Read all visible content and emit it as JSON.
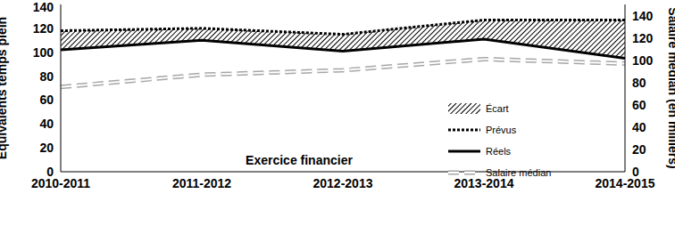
{
  "chart_data": {
    "type": "line",
    "x_label": "Exercice financier",
    "y_label": "Équivalents temps plein",
    "y2_label": "Salaire médian (en milliers)",
    "categories": [
      "2010-2011",
      "2011-2012",
      "2012-2013",
      "2013-2014",
      "2014-2015"
    ],
    "ylim": [
      0,
      140
    ],
    "yticks": [
      0,
      20,
      40,
      60,
      80,
      100,
      120,
      140
    ],
    "y2lim": [
      0,
      150
    ],
    "y2ticks": [
      0,
      20,
      40,
      60,
      80,
      100,
      120,
      140
    ],
    "grid": false,
    "legend": "right",
    "series": [
      {
        "name": "Écart",
        "type": "area",
        "stacked": true,
        "color": "#000000",
        "values": [
          16,
          10,
          14,
          16,
          32
        ]
      },
      {
        "name": "Prévus",
        "type": "line",
        "color": "#000000",
        "line_style": "dotted",
        "values": [
          118,
          120,
          115,
          127,
          127
        ]
      },
      {
        "name": "Réels",
        "type": "line",
        "color": "#000000",
        "line_style": "solid",
        "values": [
          102,
          110,
          101,
          111,
          95
        ]
      },
      {
        "name": "Salaire médian",
        "type": "line",
        "color": "#a6a6a6",
        "line_style": "dashed",
        "axis": "y2",
        "values": [
          76,
          87,
          91,
          101,
          97
        ]
      }
    ]
  }
}
